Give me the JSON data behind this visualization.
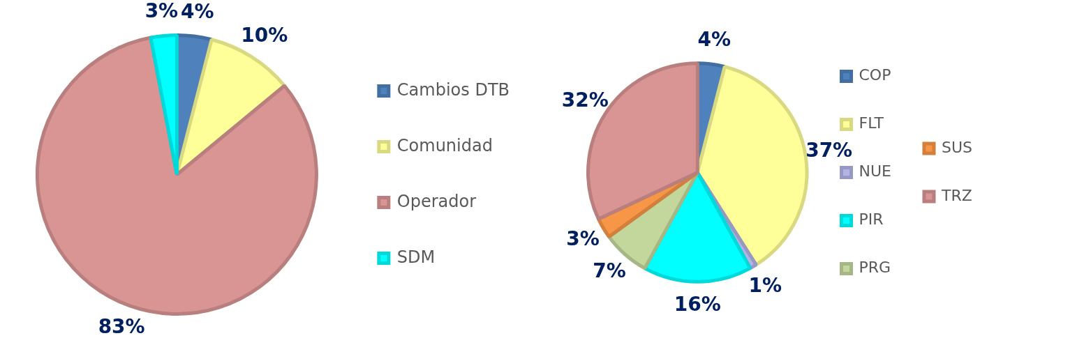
{
  "chart_data": [
    {
      "type": "pie",
      "categories": [
        "Cambios DTB",
        "Comunidad",
        "Operador",
        "SDM"
      ],
      "values": [
        4,
        10,
        83,
        3
      ],
      "colors": [
        "#4f81bd",
        "#ffff99",
        "#d99594",
        "#00ffff"
      ],
      "value_labels": [
        "4%",
        "10%",
        "83%",
        "3%"
      ],
      "legend": "right"
    },
    {
      "type": "pie",
      "categories": [
        "COP",
        "FLT",
        "NUE",
        "PIR",
        "PRG",
        "SUS",
        "TRZ"
      ],
      "values": [
        4,
        37,
        1,
        16,
        7,
        3,
        32
      ],
      "colors": [
        "#4f81bd",
        "#ffff99",
        "#b3b3e6",
        "#00ffff",
        "#c3d69b",
        "#f79646",
        "#d99594"
      ],
      "value_labels": [
        "4%",
        "37%",
        "1%",
        "16%",
        "7%",
        "3%",
        "32%"
      ],
      "legend": "right"
    }
  ]
}
